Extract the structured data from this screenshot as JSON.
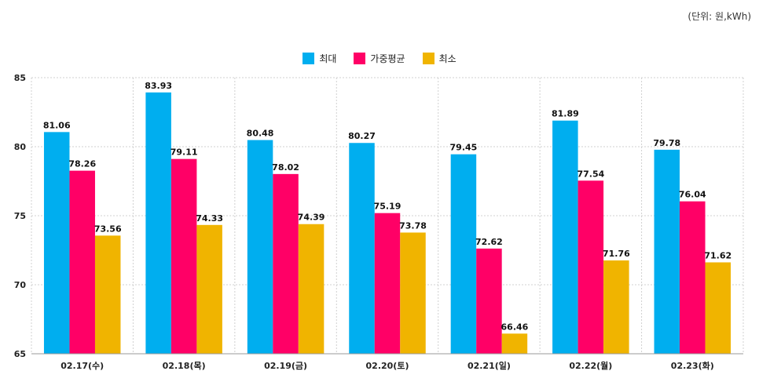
{
  "unit_label": "(단위: 원,kWh)",
  "chart_data": {
    "type": "bar",
    "categories": [
      "02.17(수)",
      "02.18(목)",
      "02.19(금)",
      "02.20(토)",
      "02.21(일)",
      "02.22(월)",
      "02.23(화)"
    ],
    "series": [
      {
        "name": "최대",
        "color": "#00AEEF",
        "values": [
          81.06,
          83.93,
          80.48,
          80.27,
          79.45,
          81.89,
          79.78
        ]
      },
      {
        "name": "가중평균",
        "color": "#FF0066",
        "values": [
          78.26,
          79.11,
          78.02,
          75.19,
          72.62,
          77.54,
          76.04
        ]
      },
      {
        "name": "최소",
        "color": "#F0B400",
        "values": [
          73.56,
          74.33,
          74.39,
          73.78,
          66.46,
          71.76,
          71.62
        ]
      }
    ],
    "ylim": [
      65,
      85
    ],
    "yticks": [
      65,
      70,
      75,
      80,
      85
    ],
    "grid": true,
    "legend_position": "top-center"
  }
}
